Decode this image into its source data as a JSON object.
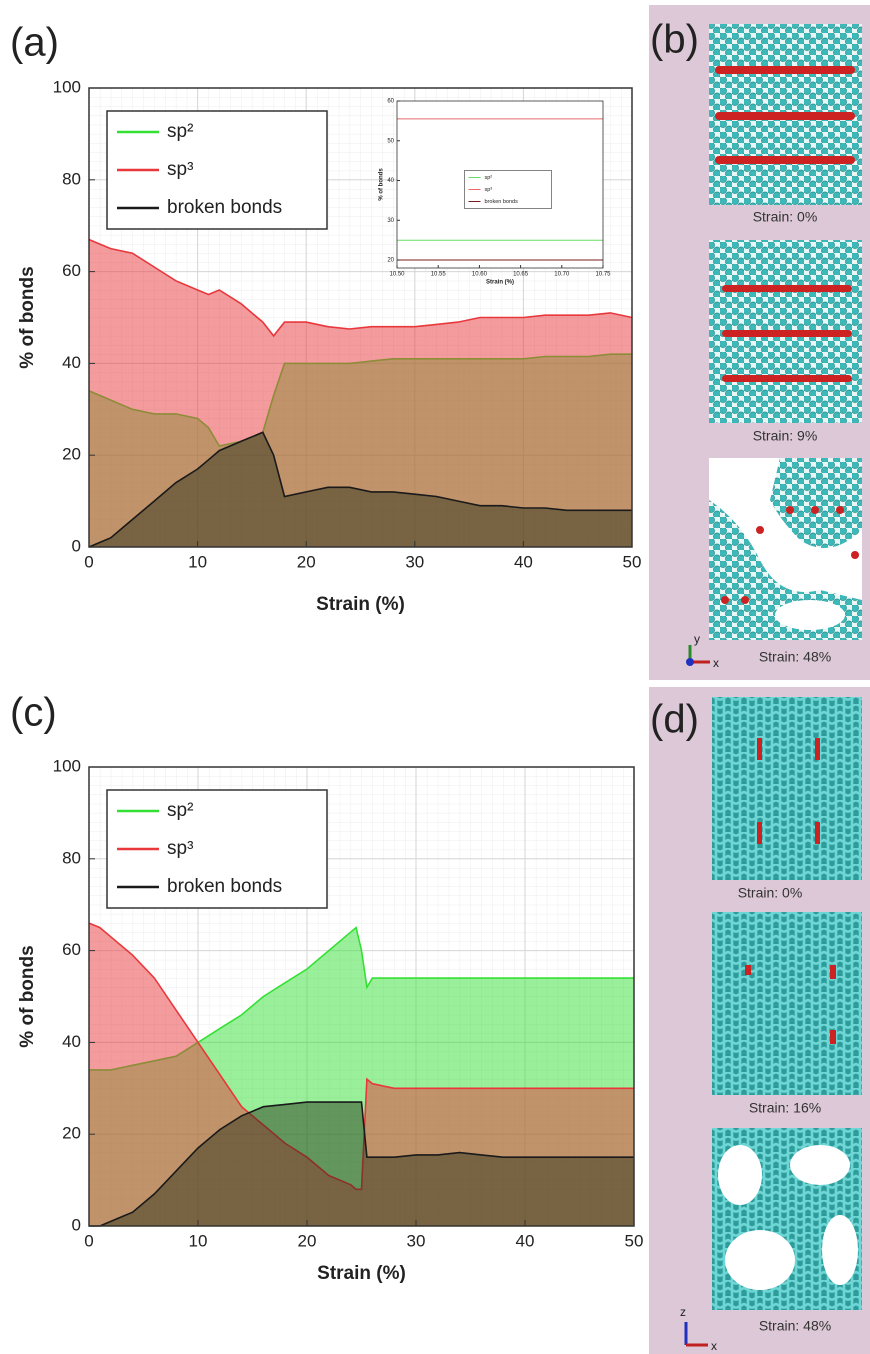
{
  "chart_data": [
    {
      "type": "area",
      "label": "(a)",
      "xlabel": "Strain (%)",
      "ylabel": "% of bonds",
      "x": [
        0,
        1,
        2,
        4,
        6,
        8,
        10,
        11,
        12,
        14,
        16,
        17,
        18,
        20,
        22,
        24,
        26,
        28,
        30,
        32,
        34,
        36,
        38,
        40,
        42,
        44,
        46,
        48,
        50
      ],
      "series": [
        {
          "name": "sp²",
          "color": "#35e035",
          "values": [
            34,
            33,
            32,
            30,
            29,
            29,
            28,
            26,
            22,
            23,
            25,
            33,
            40,
            40,
            40,
            40,
            40.5,
            41,
            41,
            41,
            41,
            41,
            41,
            41,
            41.5,
            41.5,
            41.5,
            42,
            42
          ]
        },
        {
          "name": "sp³",
          "color": "#e8383c",
          "values": [
            67,
            66,
            65,
            64,
            61,
            58,
            56,
            55,
            56,
            53,
            49,
            46,
            49,
            49,
            48,
            47.5,
            48,
            48,
            48,
            48.5,
            49,
            50,
            50,
            50,
            50.5,
            50.5,
            50.5,
            51,
            50
          ]
        },
        {
          "name": "broken bonds",
          "color": "#1f2a14",
          "values": [
            0,
            1,
            2,
            6,
            10,
            14,
            17,
            19,
            21,
            23,
            25,
            20,
            11,
            12,
            13,
            13,
            12,
            12,
            11.5,
            11,
            10,
            9,
            9,
            8.5,
            8.5,
            8,
            8,
            8,
            8
          ]
        }
      ],
      "xlim": [
        0,
        50
      ],
      "xticks": [
        0,
        10,
        20,
        30,
        40,
        50
      ],
      "ylim": [
        0,
        100
      ],
      "yticks": [
        0,
        20,
        40,
        60,
        80,
        100
      ],
      "grid": true,
      "legend": "upper left"
    },
    {
      "type": "line",
      "xlabel": "Strain (%)",
      "ylabel": "% of bonds",
      "x": [
        10.5,
        10.75
      ],
      "series": [
        {
          "name": "sp²",
          "color": "#66dd66",
          "values": [
            25,
            25
          ]
        },
        {
          "name": "sp³",
          "color": "#e86a6a",
          "values": [
            55.5,
            55.5
          ]
        },
        {
          "name": "broken bonds",
          "color": "#7a1c1c",
          "values": [
            20,
            20
          ]
        }
      ],
      "xlim": [
        10.5,
        10.75
      ],
      "xticks": [
        {
          "value": 10.5,
          "label": "10.50"
        },
        10.55,
        {
          "value": 10.6,
          "label": "10.60"
        },
        10.65,
        {
          "value": 10.7,
          "label": "10.70"
        },
        10.75
      ],
      "ylim": [
        18,
        60
      ],
      "yticks": [
        20,
        30,
        40,
        50,
        60
      ],
      "grid": false,
      "legend": "center"
    },
    {
      "type": "area",
      "label": "(c)",
      "xlabel": "Strain (%)",
      "ylabel": "% of bonds",
      "x": [
        0,
        1,
        2,
        4,
        6,
        8,
        10,
        12,
        14,
        16,
        18,
        20,
        22,
        24,
        24.5,
        25,
        25.5,
        26,
        28,
        30,
        32,
        34,
        36,
        38,
        40,
        42,
        44,
        46,
        48,
        50
      ],
      "series": [
        {
          "name": "sp²",
          "color": "#35e035",
          "values": [
            34,
            34,
            34,
            35,
            36,
            37,
            40,
            43,
            46,
            50,
            53,
            56,
            60,
            64,
            65,
            60,
            52,
            54,
            54,
            54,
            54,
            54,
            54,
            54,
            54,
            54,
            54,
            54,
            54,
            54
          ]
        },
        {
          "name": "sp³",
          "color": "#e8383c",
          "values": [
            66,
            65,
            63,
            59,
            54,
            47,
            40,
            33,
            26,
            22,
            18,
            15,
            11,
            9,
            8,
            8,
            32,
            31,
            30,
            30,
            30,
            30,
            30,
            30,
            30,
            30,
            30,
            30,
            30,
            30
          ]
        },
        {
          "name": "broken bonds",
          "color": "#1f2a14",
          "values": [
            0,
            0,
            1,
            3,
            7,
            12,
            17,
            21,
            24,
            26,
            26.5,
            27,
            27,
            27,
            27,
            27,
            15,
            15,
            15,
            15.5,
            15.5,
            16,
            15.5,
            15,
            15,
            15,
            15,
            15,
            15,
            15
          ]
        }
      ],
      "xlim": [
        0,
        50
      ],
      "xticks": [
        0,
        10,
        20,
        30,
        40,
        50
      ],
      "ylim": [
        0,
        100
      ],
      "yticks": [
        0,
        20,
        40,
        60,
        80,
        100
      ],
      "grid": true,
      "legend": "upper left"
    }
  ],
  "panels": [
    {
      "label": "(b)",
      "captions": [
        "Strain: 0%",
        "Strain: 9%",
        "Strain: 48%"
      ],
      "axes": [
        "y",
        "x"
      ]
    },
    {
      "label": "(d)",
      "captions": [
        "Strain: 0%",
        "Strain: 16%",
        "Strain: 48%"
      ],
      "axes": [
        "z",
        "x"
      ]
    }
  ]
}
